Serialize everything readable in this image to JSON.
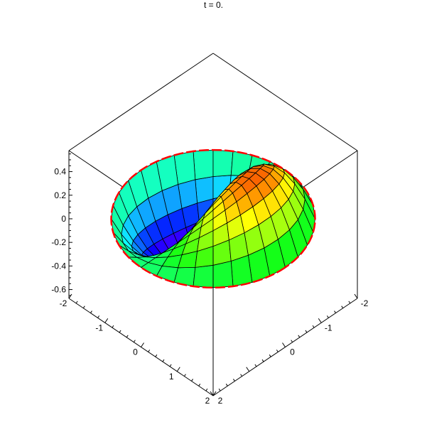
{
  "chart_data": {
    "type": "surface",
    "title": "t = 0.",
    "x_range": [
      -2,
      2
    ],
    "y_range": [
      -2,
      2
    ],
    "z_range": [
      -0.675,
      0.578
    ],
    "x_ticks": [
      "-2",
      "-1",
      "0",
      "1",
      "2"
    ],
    "y_ticks": [
      "2",
      "0",
      "-1",
      "-2"
    ],
    "z_ticks": [
      "0.4",
      "0.2",
      "0",
      "-0.2",
      "-0.4",
      "-0.6"
    ],
    "x_tick_values": [
      -2,
      -1,
      0,
      1,
      2
    ],
    "y_tick_values": [
      2,
      0,
      -1,
      -2
    ],
    "z_tick_values": [
      0.4,
      0.2,
      0,
      -0.2,
      -0.4,
      -0.6
    ],
    "domain": "disk of radius 2",
    "colormap": "z-hue (purple low → green → orange/red high)",
    "mesh": true,
    "boundary_color": "#ff0000",
    "axes": "boxed"
  }
}
